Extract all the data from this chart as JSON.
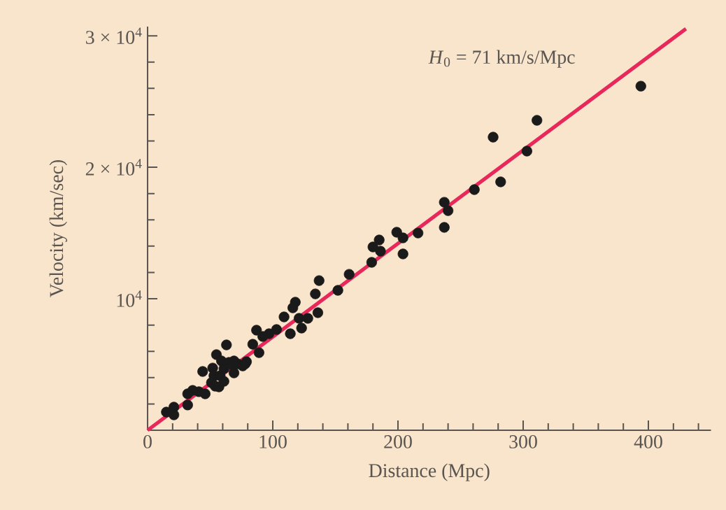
{
  "chart_data": {
    "type": "scatter",
    "xlabel": "Distance (Mpc)",
    "ylabel": "Velocity (km/sec)",
    "annotations": [
      "*H*$_{0}$ = 71 km/s/Mpc"
    ],
    "xlim": [
      0,
      450
    ],
    "ylim": [
      0,
      30700
    ],
    "xticks": [
      0,
      {
        "value": 20,
        "label": null
      },
      {
        "value": 40,
        "label": null
      },
      {
        "value": 60,
        "label": null
      },
      {
        "value": 80,
        "label": null
      },
      100,
      {
        "value": 120,
        "label": null
      },
      {
        "value": 140,
        "label": null
      },
      {
        "value": 160,
        "label": null
      },
      {
        "value": 180,
        "label": null
      },
      200,
      {
        "value": 220,
        "label": null
      },
      {
        "value": 240,
        "label": null
      },
      {
        "value": 260,
        "label": null
      },
      {
        "value": 280,
        "label": null
      },
      300,
      {
        "value": 320,
        "label": null
      },
      {
        "value": 340,
        "label": null
      },
      {
        "value": 360,
        "label": null
      },
      {
        "value": 380,
        "label": null
      },
      400,
      {
        "value": 420,
        "label": null
      },
      {
        "value": 440,
        "label": null
      }
    ],
    "yticks": [
      {
        "value": 2000,
        "label": null
      },
      {
        "value": 4000,
        "label": null
      },
      {
        "value": 6000,
        "label": null
      },
      {
        "value": 8000,
        "label": null
      },
      {
        "value": 10000,
        "label": "10$^{4}$"
      },
      {
        "value": 12000,
        "label": null
      },
      {
        "value": 14000,
        "label": null
      },
      {
        "value": 16000,
        "label": null
      },
      {
        "value": 18000,
        "label": null
      },
      {
        "value": 20000,
        "label": "2 × 10$^{4}$"
      },
      {
        "value": 22000,
        "label": null
      },
      {
        "value": 24000,
        "label": null
      },
      {
        "value": 26000,
        "label": null
      },
      {
        "value": 28000,
        "label": null
      },
      {
        "value": 30000,
        "label": "3 × 10$^{4}$"
      }
    ],
    "series": [
      {
        "marker": "circle",
        "color": "#1a1a1a",
        "x": [
          394,
          311,
          276,
          303,
          282,
          261,
          237,
          240,
          237,
          216,
          199,
          204,
          204,
          185,
          180,
          186,
          179,
          161,
          152,
          137,
          134,
          136,
          118,
          116,
          109,
          121,
          128,
          123,
          114,
          103,
          97,
          92,
          87,
          84,
          89,
          63,
          55,
          59,
          65,
          69,
          68,
          72,
          78,
          79,
          76,
          69,
          61,
          52,
          53,
          58,
          61,
          51,
          54,
          57,
          44,
          46,
          41,
          36,
          32,
          32,
          21,
          15,
          21
        ],
        "values": [
          26170,
          23570,
          22290,
          21230,
          18890,
          18300,
          17340,
          16700,
          15430,
          15000,
          15060,
          14630,
          13410,
          14470,
          13940,
          13620,
          12770,
          11860,
          10640,
          11380,
          10370,
          8940,
          9740,
          9310,
          8620,
          8510,
          8510,
          7770,
          7340,
          7660,
          7340,
          7130,
          7610,
          6540,
          5900,
          6490,
          5750,
          5270,
          5160,
          5270,
          4950,
          5050,
          5050,
          5210,
          4890,
          4360,
          4680,
          4730,
          4150,
          4150,
          3720,
          3620,
          3350,
          3300,
          4470,
          2770,
          2930,
          3030,
          2770,
          1920,
          1760,
          1380,
          1170
        ]
      },
      {
        "type": "line",
        "marker": "none",
        "color": "#e8285a",
        "x": [
          0,
          430
        ],
        "values": [
          0,
          30530
        ]
      }
    ]
  }
}
